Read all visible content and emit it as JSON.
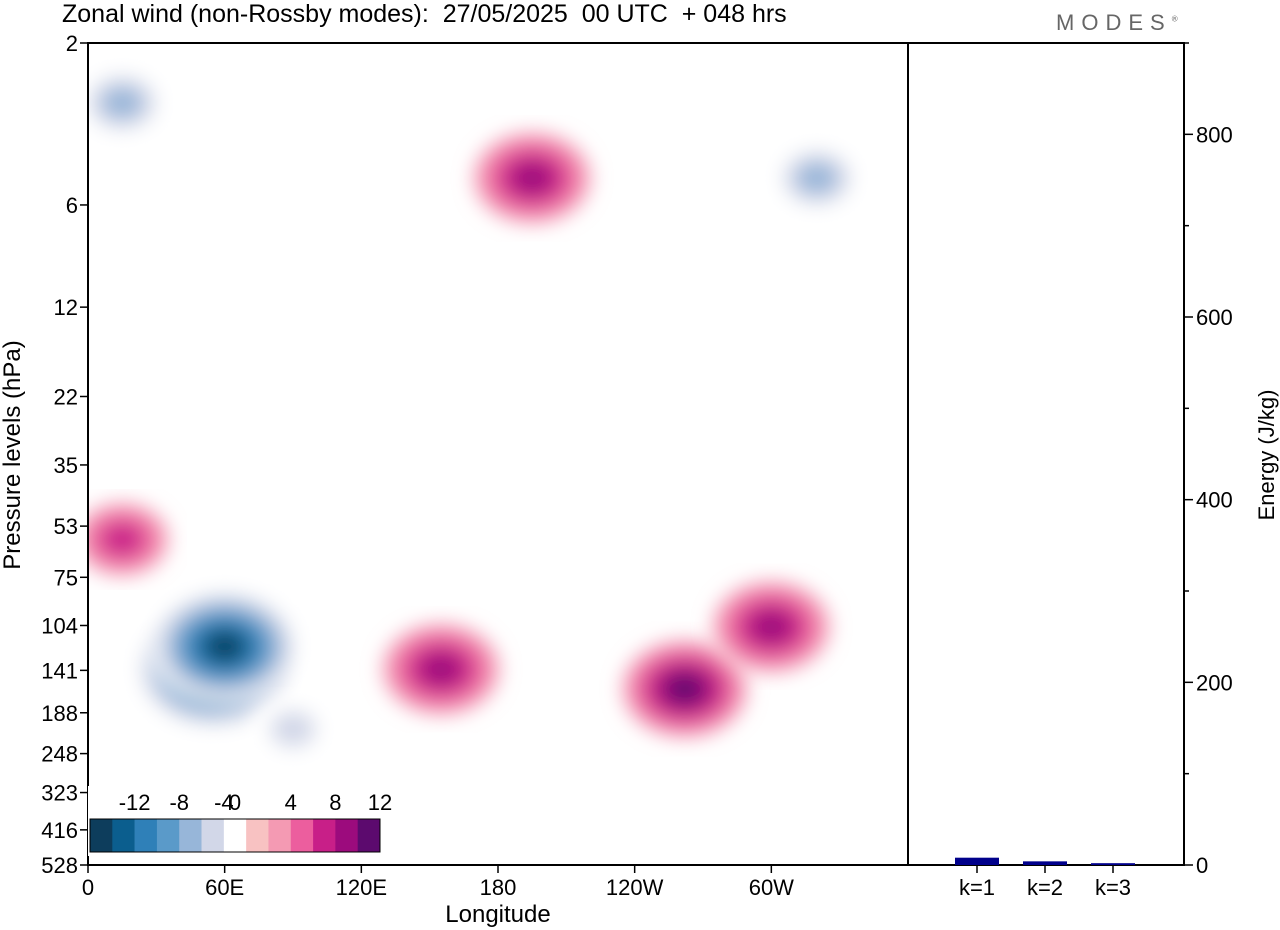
{
  "title": "Zonal wind (non-Rossby modes):  27/05/2025  00 UTC  + 048 hrs",
  "logo": "MODES",
  "logo_mark": "®",
  "chart_data": [
    {
      "type": "heatmap",
      "variable": "Zonal wind (non-Rossby modes)",
      "xlabel": "Longitude",
      "ylabel": "Pressure levels (hPa)",
      "x_ticks": [
        "0",
        "60E",
        "120E",
        "180",
        "120W",
        "60W"
      ],
      "x_tick_degrees": [
        0,
        60,
        120,
        180,
        240,
        300
      ],
      "xlim": [
        0,
        360
      ],
      "y_ticks": [
        "2",
        "6",
        "12",
        "22",
        "35",
        "53",
        "75",
        "104",
        "141",
        "188",
        "248",
        "323",
        "416",
        "528"
      ],
      "y_scale": "log",
      "y_inverted": true,
      "colorbar": {
        "labels": [
          "-12",
          "-8",
          "-4",
          "0",
          "4",
          "8",
          "12"
        ],
        "levels": [
          -14,
          -12,
          -10,
          -8,
          -6,
          -4,
          -2,
          2,
          4,
          6,
          8,
          10,
          12,
          14
        ],
        "colors": [
          "#0d3d5c",
          "#0b5e8e",
          "#2f80b8",
          "#5a9ac9",
          "#97b6d9",
          "#d2d7e8",
          "#ffffff",
          "#f8c2c2",
          "#f49ab3",
          "#ec5e9e",
          "#c81f88",
          "#9c0b7d",
          "#5c0a6e"
        ]
      },
      "features": [
        {
          "lon": 55,
          "p": 140,
          "value": -15
        },
        {
          "lon": 60,
          "p": 120,
          "value": -14
        },
        {
          "lon": 90,
          "p": 210,
          "value": -4
        },
        {
          "lon": 15,
          "p": 3,
          "value": -6
        },
        {
          "lon": 155,
          "p": 140,
          "value": 9
        },
        {
          "lon": 195,
          "p": 5,
          "value": 9
        },
        {
          "lon": 262,
          "p": 160,
          "value": 10
        },
        {
          "lon": 300,
          "p": 105,
          "value": 9
        },
        {
          "lon": 320,
          "p": 5,
          "value": -6
        },
        {
          "lon": 15,
          "p": 58,
          "value": 6
        }
      ]
    },
    {
      "type": "bar",
      "categories": [
        "k=1",
        "k=2",
        "k=3"
      ],
      "values": [
        8,
        4,
        2
      ],
      "ylabel": "Energy (J/kg)",
      "y_ticks": [
        "0",
        "200",
        "400",
        "600",
        "800"
      ],
      "ylim": [
        0,
        900
      ],
      "bar_color": "#00008b"
    }
  ]
}
